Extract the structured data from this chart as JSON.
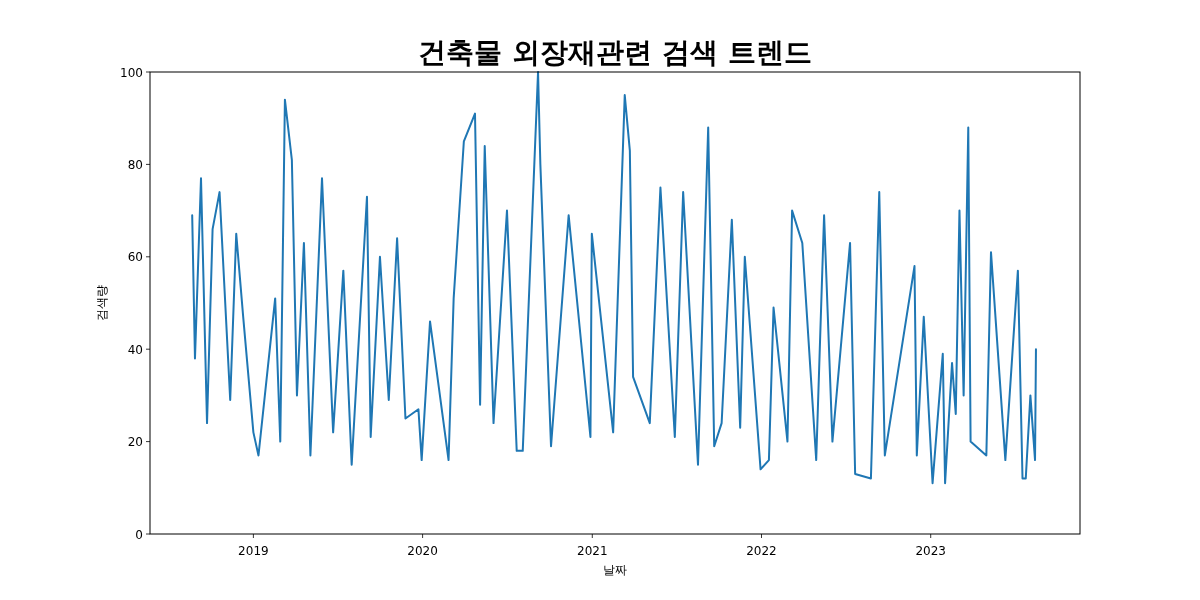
{
  "chart_data": {
    "type": "line",
    "title": "건축물 외장재관련 검색 트렌드",
    "xlabel": "날짜",
    "ylabel": "검색량",
    "xlim": [
      "2018-05-23",
      "2023-11-19"
    ],
    "xticks": [
      {
        "value": "2019-01-01",
        "label": "2019"
      },
      {
        "value": "2020-01-01",
        "label": "2020"
      },
      {
        "value": "2021-01-01",
        "label": "2021"
      },
      {
        "value": "2022-01-01",
        "label": "2022"
      },
      {
        "value": "2023-01-01",
        "label": "2023"
      }
    ],
    "ylim": [
      0,
      100
    ],
    "yticks": [
      0,
      20,
      40,
      60,
      80,
      100
    ],
    "grid": false,
    "marker": "none",
    "line_style": "solid",
    "series": [
      {
        "color": "#1f77b4",
        "x": [
          "2018-08-22",
          "2018-08-28",
          "2018-09-10",
          "2018-09-23",
          "2018-10-05",
          "2018-10-20",
          "2018-11-12",
          "2018-11-25",
          "2018-12-10",
          "2019-01-01",
          "2019-01-12",
          "2019-02-17",
          "2019-02-28",
          "2019-03-10",
          "2019-03-25",
          "2019-04-05",
          "2019-04-20",
          "2019-05-04",
          "2019-05-29",
          "2019-06-22",
          "2019-07-14",
          "2019-08-01",
          "2019-09-03",
          "2019-09-11",
          "2019-10-01",
          "2019-10-20",
          "2019-11-07",
          "2019-11-25",
          "2019-12-23",
          "2019-12-30",
          "2020-01-17",
          "2020-02-26",
          "2020-03-08",
          "2020-03-30",
          "2020-04-23",
          "2020-05-04",
          "2020-05-14",
          "2020-06-02",
          "2020-07-01",
          "2020-07-22",
          "2020-08-04",
          "2020-09-06",
          "2020-09-11",
          "2020-10-04",
          "2020-11-11",
          "2020-12-28",
          "2020-12-31",
          "2021-02-15",
          "2021-03-12",
          "2021-03-23",
          "2021-03-30",
          "2021-05-05",
          "2021-05-28",
          "2021-06-28",
          "2021-07-16",
          "2021-08-17",
          "2021-09-08",
          "2021-09-21",
          "2021-10-07",
          "2021-10-29",
          "2021-11-16",
          "2021-11-26",
          "2021-12-30",
          "2022-01-17",
          "2022-01-27",
          "2022-02-26",
          "2022-03-08",
          "2022-03-30",
          "2022-04-29",
          "2022-05-16",
          "2022-06-03",
          "2022-07-11",
          "2022-07-22",
          "2022-08-25",
          "2022-09-12",
          "2022-09-24",
          "2022-11-27",
          "2022-12-02",
          "2022-12-17",
          "2023-01-05",
          "2023-01-27",
          "2023-02-01",
          "2023-02-16",
          "2023-02-24",
          "2023-03-04",
          "2023-03-13",
          "2023-03-23",
          "2023-03-28",
          "2023-05-01",
          "2023-05-11",
          "2023-06-11",
          "2023-07-08",
          "2023-07-18",
          "2023-07-25",
          "2023-08-04",
          "2023-08-14",
          "2023-08-16"
        ],
        "values": [
          69,
          38,
          77,
          24,
          66,
          74,
          29,
          65,
          47,
          22,
          17,
          51,
          20,
          94,
          81,
          30,
          63,
          17,
          77,
          22,
          57,
          15,
          73,
          21,
          60,
          29,
          64,
          25,
          27,
          16,
          46,
          16,
          51,
          85,
          91,
          28,
          84,
          24,
          70,
          18,
          18,
          100,
          80,
          19,
          69,
          21,
          65,
          22,
          95,
          83,
          34,
          24,
          75,
          21,
          74,
          15,
          88,
          19,
          24,
          68,
          23,
          60,
          14,
          16,
          49,
          20,
          70,
          63,
          16,
          69,
          20,
          63,
          13,
          12,
          74,
          17,
          58,
          17,
          47,
          11,
          39,
          11,
          37,
          26,
          70,
          30,
          88,
          20,
          17,
          61,
          16,
          57,
          12,
          12,
          30,
          16,
          40
        ]
      }
    ]
  }
}
